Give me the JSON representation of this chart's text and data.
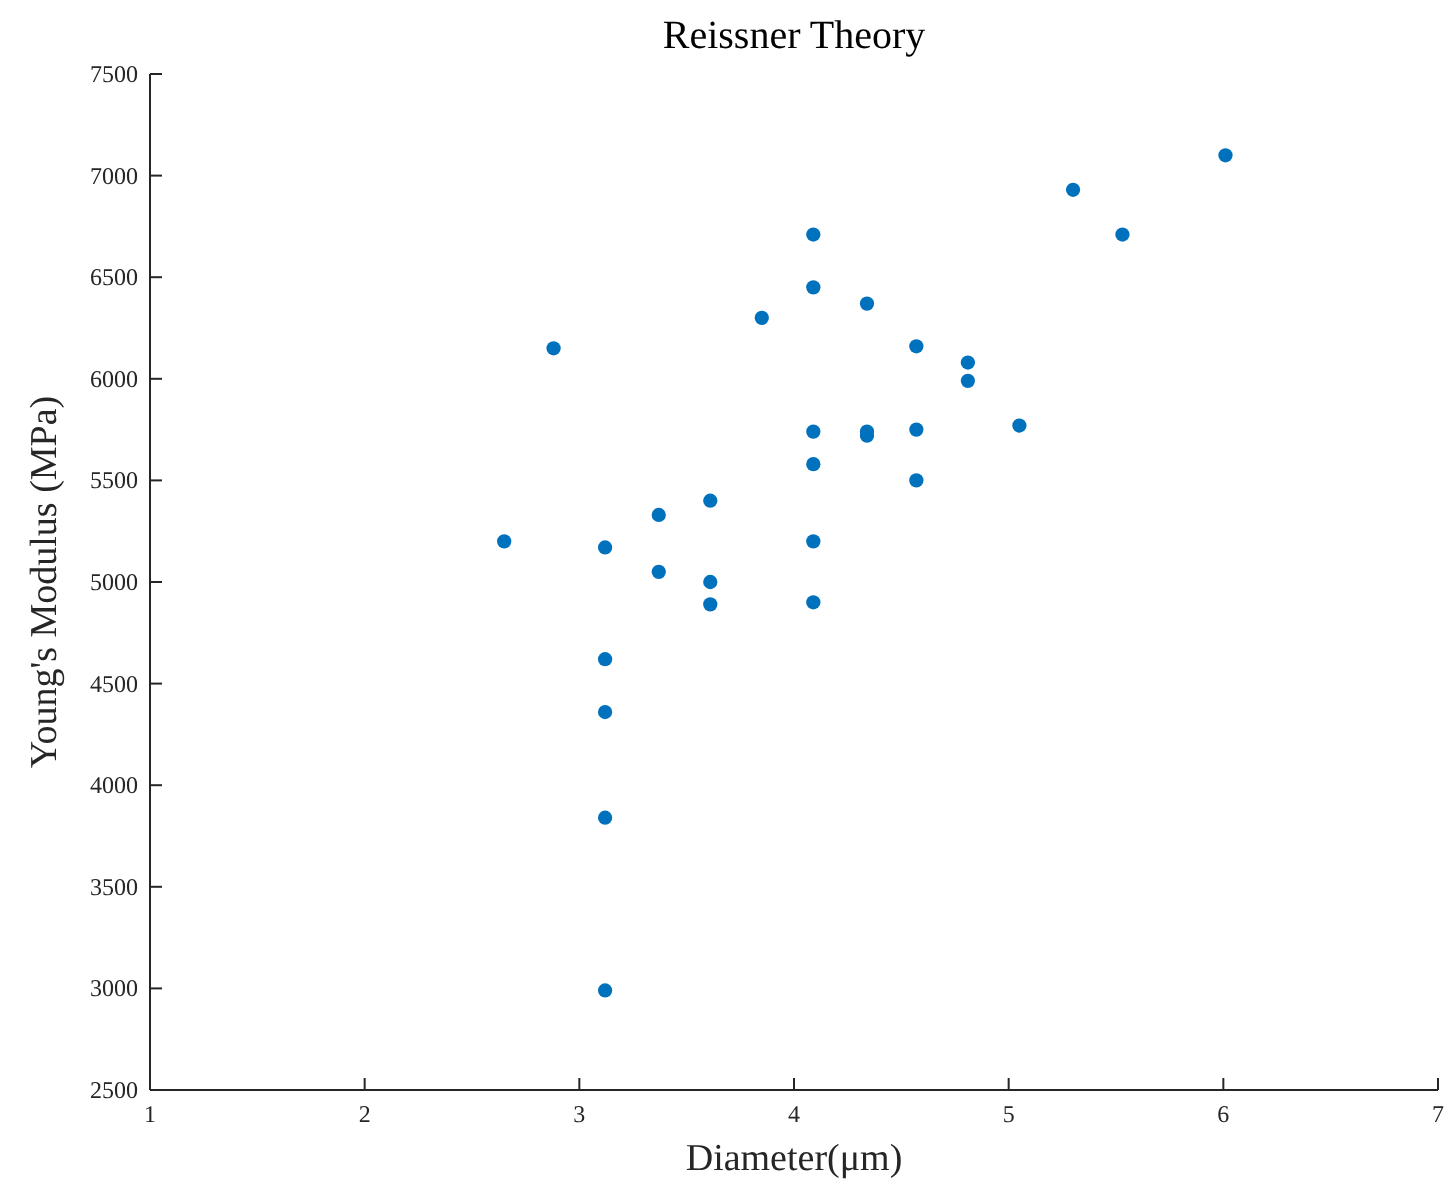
{
  "chart_data": {
    "type": "scatter",
    "title": "Reissner Theory",
    "xlabel": "Diameter(μm)",
    "ylabel": "Young's Modulus (MPa)",
    "xlim": [
      1,
      7
    ],
    "xticks": [
      1,
      2,
      3,
      4,
      5,
      6,
      7
    ],
    "ylim": [
      2500,
      7500
    ],
    "yticks": [
      2500,
      3000,
      3500,
      4000,
      4500,
      5000,
      5500,
      6000,
      6500,
      7000,
      7500
    ],
    "marker": "circle",
    "series": [
      {
        "color": "#0072bd",
        "x": [
          2.65,
          2.88,
          3.12,
          3.12,
          3.12,
          3.12,
          3.12,
          3.37,
          3.37,
          3.61,
          3.61,
          3.61,
          3.85,
          4.09,
          4.09,
          4.09,
          4.09,
          4.09,
          4.09,
          4.34,
          4.34,
          4.34,
          4.57,
          4.57,
          4.57,
          4.81,
          4.81,
          5.05,
          5.3,
          5.53,
          6.01
        ],
        "values": [
          5200,
          6150,
          5170,
          4620,
          4360,
          3840,
          2990,
          5330,
          5050,
          5400,
          5000,
          4890,
          6300,
          6710,
          6450,
          5740,
          5580,
          5200,
          4900,
          6370,
          5740,
          5720,
          6160,
          5750,
          5500,
          6080,
          5990,
          5770,
          6930,
          6710,
          7100
        ]
      }
    ]
  }
}
